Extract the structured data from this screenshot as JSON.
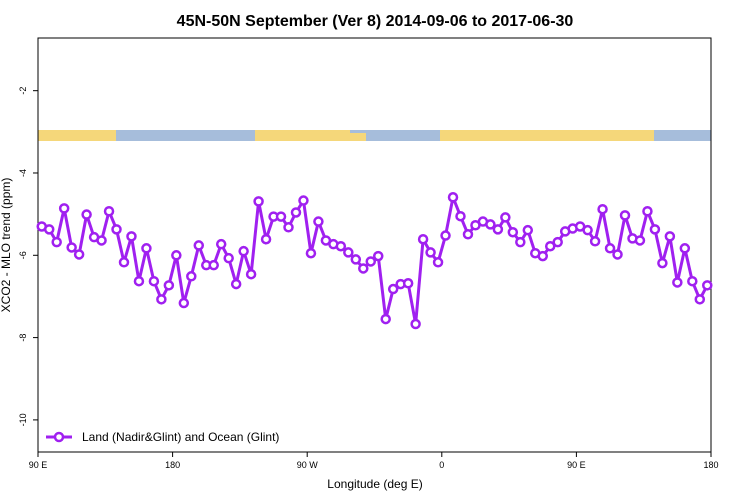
{
  "chart_data": {
    "type": "line",
    "title": "45N-50N September (Ver 8)   2014-09-06 to 2017-06-30",
    "x_label": "Longitude (deg E)",
    "y_label": "XCO2 - MLO trend (ppm)",
    "xlim": [
      90,
      540
    ],
    "xticks": [
      {
        "value": 90,
        "label": "90 E"
      },
      180,
      {
        "value": 270,
        "label": "90 W"
      },
      {
        "value": 360,
        "label": "0"
      },
      {
        "value": 450,
        "label": "90 E"
      },
      {
        "value": 540,
        "label": "180"
      }
    ],
    "ylim": [
      -10.78,
      -0.72
    ],
    "yticks": [
      -10,
      -8,
      -6,
      -4,
      -2
    ],
    "grid": false,
    "legend": "bottom-left",
    "x": [
      92.5,
      97.5,
      102.5,
      107.5,
      112.5,
      117.5,
      122.5,
      127.5,
      132.5,
      137.5,
      142.5,
      147.5,
      152.5,
      157.5,
      162.5,
      167.5,
      172.5,
      177.5,
      182.5,
      187.5,
      192.5,
      197.5,
      202.5,
      207.5,
      212.5,
      217.5,
      222.5,
      227.5,
      232.5,
      237.5,
      242.5,
      247.5,
      252.5,
      257.5,
      262.5,
      267.5,
      272.5,
      277.5,
      282.5,
      287.5,
      292.5,
      297.5,
      302.5,
      307.5,
      312.5,
      317.5,
      322.5,
      327.5,
      332.5,
      337.5,
      342.5,
      347.5,
      352.5,
      357.5,
      362.5,
      367.5,
      372.5,
      377.5,
      382.5,
      387.5,
      392.5,
      397.5,
      402.5,
      407.5,
      412.5,
      417.5,
      422.5,
      427.5,
      432.5,
      437.5,
      442.5,
      447.5,
      452.5,
      457.5,
      462.5,
      467.5,
      472.5,
      477.5,
      482.5,
      487.5,
      492.5,
      497.5,
      502.5,
      507.5,
      512.5,
      517.5,
      522.5,
      527.5,
      532.5,
      537.5
    ],
    "series": [
      {
        "name": "Land (Nadir&Glint) and Ocean (Glint)",
        "color": "#a020f0",
        "values": [
          -5.3,
          -5.37,
          -5.68,
          -4.86,
          -5.81,
          -5.98,
          -5.01,
          -5.56,
          -5.64,
          -4.93,
          -5.37,
          -6.17,
          -5.54,
          -6.63,
          -5.83,
          -6.63,
          -7.07,
          -6.73,
          -6.0,
          -7.16,
          -6.51,
          -5.76,
          -6.24,
          -6.24,
          -5.73,
          -6.07,
          -6.7,
          -5.9,
          -6.46,
          -4.69,
          -5.61,
          -5.06,
          -5.06,
          -5.32,
          -4.96,
          -4.67,
          -5.95,
          -5.18,
          -5.64,
          -5.73,
          -5.78,
          -5.93,
          -6.1,
          -6.32,
          -6.15,
          -6.02,
          -7.55,
          -6.82,
          -6.7,
          -6.68,
          -7.67,
          -5.61,
          -5.93,
          -6.17,
          -5.52,
          -4.59,
          -5.05,
          -5.49,
          -5.27,
          -5.18,
          -5.25,
          -5.37,
          -5.08,
          -5.44,
          -5.68,
          -5.39,
          -5.95,
          -6.02,
          -5.78,
          -5.68,
          -5.42,
          -5.35,
          -5.3,
          -5.39,
          -5.66,
          -4.88,
          -5.83,
          -5.98,
          -5.03,
          -5.59,
          -5.64,
          -4.93,
          -5.37,
          -6.19,
          -5.54,
          -6.66,
          -5.83,
          -6.63,
          -7.07,
          -6.73
        ]
      }
    ]
  }
}
